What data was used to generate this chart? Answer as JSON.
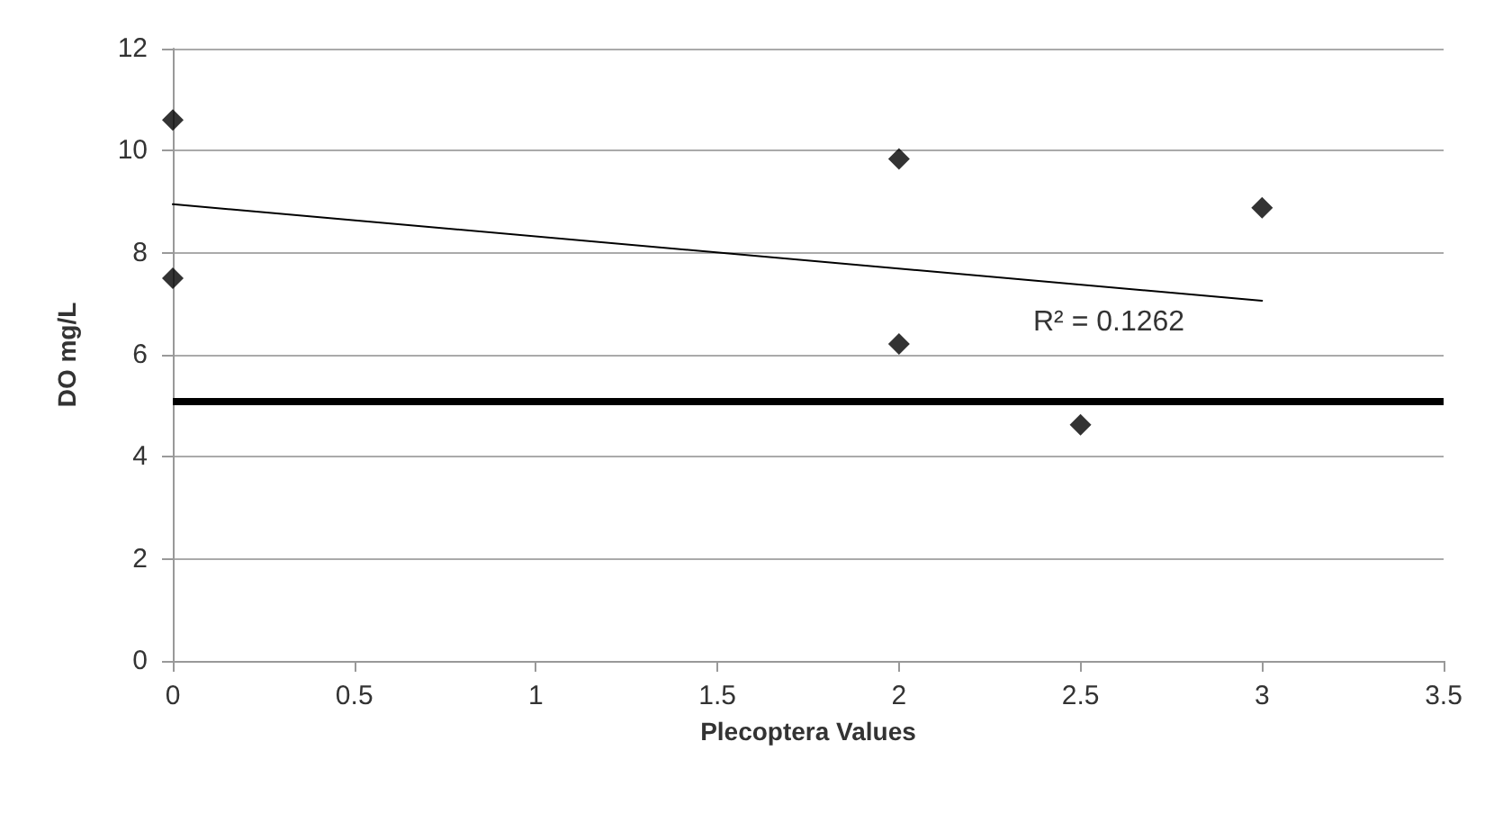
{
  "chart_data": {
    "type": "scatter",
    "xlabel": "Plecoptera Values",
    "ylabel": "DO mg/L",
    "x": [
      0,
      0,
      2,
      2,
      2.5,
      3
    ],
    "series": [
      {
        "type": "scatter",
        "color": "#000000",
        "marker": "diamond",
        "values": [
          10.6,
          7.5,
          9.84,
          6.21,
          4.63,
          8.88
        ]
      },
      {
        "type": "line",
        "color": "#000000",
        "x": [
          0,
          3
        ],
        "values": [
          8.95,
          7.06
        ]
      }
    ],
    "xlim": [
      0,
      3.5
    ],
    "xticks": [
      0,
      0.5,
      1,
      1.5,
      2,
      2.5,
      3,
      3.5
    ],
    "ylim": [
      0,
      12
    ],
    "yticks": [
      0,
      2,
      4,
      6,
      8,
      10,
      12
    ],
    "grid": "y",
    "ref_lines": [
      {
        "axis": "y",
        "value": 5.1,
        "color": "#000000"
      }
    ],
    "annotations": [
      "R² = 0.1262"
    ]
  }
}
